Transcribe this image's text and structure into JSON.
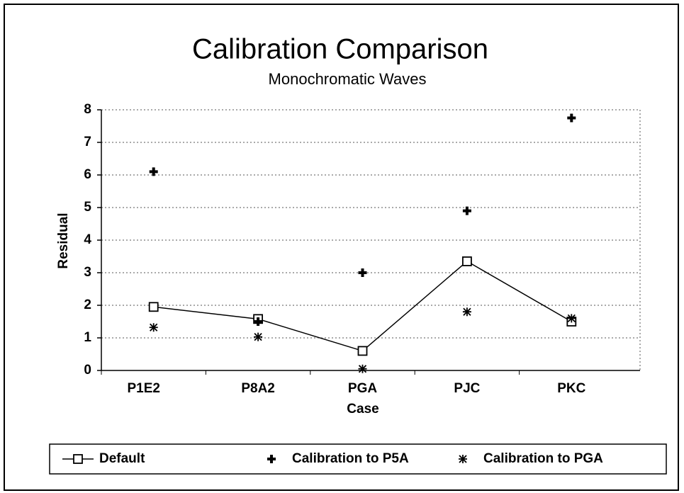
{
  "chart_data": {
    "type": "line",
    "title": "Calibration Comparison",
    "subtitle": "Monochromatic Waves",
    "x_label": "Case",
    "y_label": "Residual",
    "categories": [
      "P1E2",
      "P8A2",
      "PGA",
      "PJC",
      "PKC"
    ],
    "series": [
      {
        "name": "Default",
        "color": "#000000",
        "style": "line-marker",
        "marker": "square",
        "values": [
          1.95,
          1.58,
          0.6,
          3.35,
          1.5
        ]
      },
      {
        "name": "Calibration to P5A",
        "color": "#000000",
        "style": "marker",
        "marker": "plus",
        "values": [
          6.1,
          1.5,
          3.0,
          4.9,
          7.75
        ]
      },
      {
        "name": "Calibration to PGA",
        "color": "#000000",
        "style": "marker",
        "marker": "asterisk",
        "values": [
          1.32,
          1.03,
          0.05,
          1.8,
          1.6
        ]
      }
    ],
    "ylim": [
      0,
      8
    ],
    "yticks": [
      0,
      1,
      2,
      3,
      4,
      5,
      6,
      7,
      8
    ],
    "grid": true,
    "legend": "bottom"
  }
}
